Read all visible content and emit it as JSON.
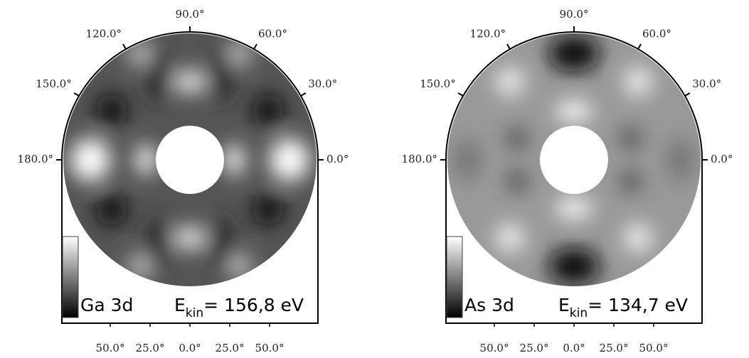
{
  "panels": [
    {
      "element": "Ga 3d",
      "energy_symbol": "E",
      "energy_subscript": "kin",
      "energy_value": "= 156,8 eV",
      "azimuth_ticks": [
        {
          "value": 0,
          "label": "0.0°"
        },
        {
          "value": 30,
          "label": "30.0°"
        },
        {
          "value": 60,
          "label": "60.0°"
        },
        {
          "value": 90,
          "label": "90.0°"
        },
        {
          "value": 120,
          "label": "120.0°"
        },
        {
          "value": 150,
          "label": "150.0°"
        },
        {
          "value": 180,
          "label": "180.0°"
        }
      ],
      "polar_ticks": [
        {
          "value": -50,
          "label": "50.0°"
        },
        {
          "value": -25,
          "label": "25.0°"
        },
        {
          "value": 0,
          "label": "0.0°"
        },
        {
          "value": 25,
          "label": "25.0°"
        },
        {
          "value": 50,
          "label": "50.0°"
        }
      ]
    },
    {
      "element": "As 3d",
      "energy_symbol": "E",
      "energy_subscript": "kin",
      "energy_value": "= 134,7 eV",
      "azimuth_ticks": [
        {
          "value": 0,
          "label": "0.0°"
        },
        {
          "value": 30,
          "label": "30.0°"
        },
        {
          "value": 60,
          "label": "60.0°"
        },
        {
          "value": 90,
          "label": "90.0°"
        },
        {
          "value": 120,
          "label": "120.0°"
        },
        {
          "value": 150,
          "label": "150.0°"
        },
        {
          "value": 180,
          "label": "180.0°"
        }
      ],
      "polar_ticks": [
        {
          "value": -50,
          "label": "50.0°"
        },
        {
          "value": -25,
          "label": "25.0°"
        },
        {
          "value": 0,
          "label": "0.0°"
        },
        {
          "value": 25,
          "label": "25.0°"
        },
        {
          "value": 50,
          "label": "50.0°"
        }
      ]
    }
  ]
}
